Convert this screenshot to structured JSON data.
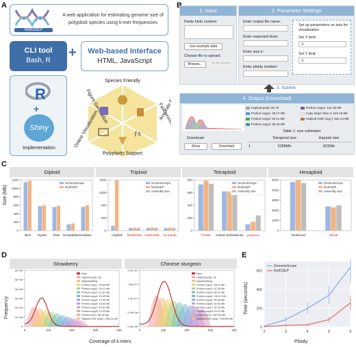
{
  "panels": {
    "a": "A",
    "b": "B",
    "c": "C",
    "d": "D",
    "e": "E"
  },
  "a": {
    "logo_text": "findGSEP",
    "logo_desc": "A web application for estimating genome size of polyploid species using k-mer frequencies",
    "cli_title": "CLI tool",
    "cli_sub": "Bash, R",
    "plus": "+",
    "web_title": "Web-based Interface",
    "web_sub": "HTML, JavaScript",
    "r_label": "R",
    "shiny_label": "Shiny",
    "impl_label": "Implementation",
    "hex": {
      "top": "Species Friendly",
      "ur": "Fast process",
      "lr": "Accurate Estimation",
      "bottom": "Polyploidy Support",
      "ll": "Online Visualization",
      "ul": "Figure Generation"
    }
  },
  "b": {
    "input_header": "1. Input",
    "param_header": "2. Parameter Settings",
    "paste_label": "Paste histo content:",
    "example_button": "Use example data",
    "choose_label": "Choose file to upload:",
    "browse_button": "Browse...",
    "no_file": "No file selected",
    "output_name_label": "Enter output file name:",
    "hom_label": "Enter expected Hom:",
    "k_label": "Enter size k:",
    "ploidy_label": "Enter ploidy number:",
    "axis_title": "Set up parameters on axis for visualization",
    "xlim_label": "Set X limit:",
    "xlim_value": "-1",
    "ylim_label": "Set Y limit:",
    "ylim_value": "-1",
    "submit_label": "3. Submit",
    "output_header": "4. Output (Download)",
    "download_label": "Download:",
    "show_button": "Show",
    "download_button": "Download",
    "legend": [
      {
        "label": "Haploid-peak: 85.76",
        "color": "#9aa4ad"
      },
      {
        "label": "Portion-copy4: 141.28 Mb",
        "color": "#7e57a7"
      },
      {
        "label": "Portion-copy1: 48.17 Mb",
        "color": "#49a0d8"
      },
      {
        "label": "Copy larger than 4: 512.15 Mb",
        "color": "#fff4cc"
      },
      {
        "label": "Portion-copy2: 84.11 Mb",
        "color": "#4aa54d"
      },
      {
        "label": "Haploid GSE (avg.): 822.14 Mb",
        "color": "#b9743f"
      },
      {
        "label": "Portion-copy3: 38.43 Mb",
        "color": "#3f8fb8"
      }
    ],
    "table_title": "Table 1: size  estimates",
    "table_headers": [
      "",
      "Tetraploid size",
      "Haploid size"
    ],
    "table_row": [
      "1",
      "3288Mb",
      "822Mb"
    ]
  },
  "c": {
    "ylabel": "Size (Mb)",
    "groups": [
      {
        "title": "Diploid",
        "species": [
          "Bird",
          "Oyster",
          "Pear",
          "Drosophila",
          "Seabass"
        ],
        "gs": [
          1150,
          580,
          560,
          150,
          560
        ],
        "fg": [
          1180,
          600,
          590,
          170,
          600
        ],
        "ticks": [
          "0",
          "200",
          "400",
          "600",
          "800",
          "1000",
          "1200"
        ],
        "ymax": 1200,
        "legend": [
          "GenomeScope",
          "findGSEP"
        ],
        "red": []
      },
      {
        "title": "Triploid",
        "species": [
          "crayfish",
          "floridensis",
          "enterolobii",
          "incognita"
        ],
        "gs": [
          420,
          230,
          240,
          230
        ],
        "fg": [
          4400,
          260,
          270,
          260
        ],
        "asm": [
          null,
          240,
          250,
          245
        ],
        "ticks": [
          "0",
          "200",
          "400",
          "4200",
          "4400"
        ],
        "ymax": 4400,
        "legend": [
          "GenomeScope",
          "findGSEP",
          "Assembly size"
        ],
        "red": [
          "floridensis",
          "enterolobii",
          "incognita"
        ]
      },
      {
        "title": "Tetraploid",
        "species": [
          "Potato",
          "Cotton barbadense",
          "javanica"
        ],
        "gs": [
          730,
          620,
          100
        ],
        "fg": [
          790,
          620,
          140
        ],
        "asm": [
          740,
          620,
          240
        ],
        "ticks": [
          "0",
          "200",
          "400",
          "600",
          "800"
        ],
        "ymax": 800,
        "legend": [
          "GenomeScope",
          "findGSEP",
          "Assembly size"
        ],
        "red": [
          "Potato",
          "javanica"
        ]
      },
      {
        "title": "Hexaploid",
        "species": [
          "Redwood",
          "wheat"
        ],
        "gs": [
          4800,
          2400
        ],
        "fg": [
          5000,
          2300
        ],
        "asm": [
          4700,
          2500
        ],
        "ticks": [
          "0",
          "1000",
          "2000",
          "3000",
          "4000",
          "5000"
        ],
        "ymax": 5000,
        "legend": [
          "GenomeScope",
          "findGSEP",
          "Assembly size"
        ],
        "red": [
          "wheat"
        ]
      }
    ],
    "colors": {
      "gs": "#9fb7e2",
      "fg": "#f2b483",
      "asm": "#bdbdbd"
    }
  },
  "d": {
    "ylabel": "Frequency",
    "xlabel": "Coverage of k-mers",
    "charts": [
      {
        "title": "Strawberry",
        "yticks": [
          "0",
          "1e+06",
          "2e+06",
          "3e+06",
          "4e+06",
          "5e+06",
          "6e+06"
        ],
        "xticks": [
          "0",
          "100",
          "200",
          "300",
          "400"
        ],
        "legend": [
          "Raw",
          "Haploid-peak: 56",
          "Haploid-fitting",
          "Portion-copy1: 25.84 Mb",
          "Portion-copy2: 34.21 Mb",
          "Portion-copy3: 11.87 Mb",
          "Portion-copy4: 15.43 Mb",
          "Portion-copy5: 14.05 Mb",
          "Portion-copy6: 15.82 Mb",
          "Portion-copy7: 14.61 Mb",
          "Portion-copy8: 12.05 Mb",
          "Portion-other: 58.96 Mb",
          "Haploid GSE (avg.): 208.24 Mb"
        ]
      },
      {
        "title": "Chinese sturgeon",
        "yticks": [
          "0.0e+00",
          "5.0e+06",
          "1.0e+07",
          "1.5e+07",
          "2.0e+07"
        ],
        "xticks": [
          "0",
          "100",
          "200",
          "300",
          "400"
        ],
        "legend": [
          "Raw",
          "Haploid-peak: 26",
          "Haploid-fitting",
          "Portion-copy1: 48.22 Mb",
          "Portion-copy2: 87.38 Mb",
          "Portion-copy3: 86.67 Mb",
          "Portion-copy4: 154.41 Mb",
          "Portion-copy5: 80.98 Mb",
          "Portion-copy6: 92.54 Mb",
          "Portion-copy7: 57.29 Mb",
          "Portion-copy8: 53.12 Mb",
          "Portion-other: 290.65 Mb",
          "Haploid GSE (avg.): 904.89 Mb"
        ]
      }
    ]
  },
  "e": {
    "ylabel": "Time (seconds)",
    "xlabel": "Ploidy",
    "legend": [
      "GenomeScope",
      "findGSEP"
    ],
    "xticks": [
      "2",
      "3",
      "4",
      "5",
      "6"
    ],
    "yticks": [
      "0",
      "200",
      "400",
      "600"
    ],
    "chart_data": {
      "type": "line",
      "x": [
        2,
        3,
        4,
        5,
        6
      ],
      "series": [
        {
          "name": "GenomeScope",
          "values": [
            10,
            80,
            200,
            340,
            640
          ]
        },
        {
          "name": "findGSEP",
          "values": [
            5,
            20,
            25,
            80,
            260
          ]
        }
      ],
      "ylim": [
        0,
        700
      ]
    },
    "colors": {
      "gs": "#8fb1e6",
      "fg": "#e07b74"
    }
  }
}
